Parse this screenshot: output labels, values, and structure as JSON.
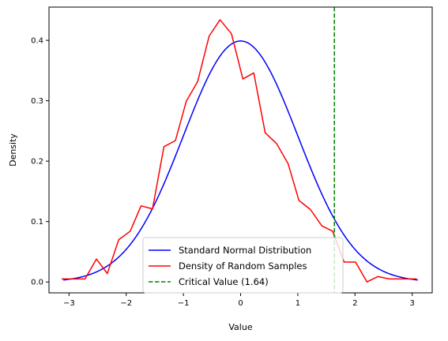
{
  "chart_data": {
    "type": "line",
    "xlabel": "Value",
    "ylabel": "Density",
    "xlim": [
      -3.35,
      3.35
    ],
    "ylim": [
      -0.018,
      0.455
    ],
    "xticks": [
      -3,
      -2,
      -1,
      0,
      1,
      2,
      3
    ],
    "xtick_labels": [
      "−3",
      "−2",
      "−1",
      "0",
      "1",
      "2",
      "3"
    ],
    "yticks": [
      0.0,
      0.1,
      0.2,
      0.3,
      0.4
    ],
    "ytick_labels": [
      "0.0",
      "0.1",
      "0.2",
      "0.3",
      "0.4"
    ],
    "grid": false,
    "legend_position": "lower-center",
    "series": [
      {
        "name": "Standard Normal Distribution",
        "color": "#0000ff",
        "style": "solid",
        "function": "standard-normal-pdf",
        "x_range": [
          -3.1,
          3.1
        ]
      },
      {
        "name": "Density of Random Samples",
        "color": "#ff0000",
        "style": "solid",
        "x": [
          -3.13,
          -2.92,
          -2.72,
          -2.52,
          -2.33,
          -2.13,
          -1.93,
          -1.74,
          -1.54,
          -1.34,
          -1.14,
          -0.95,
          -0.75,
          -0.55,
          -0.36,
          -0.16,
          0.04,
          0.23,
          0.43,
          0.63,
          0.83,
          1.02,
          1.22,
          1.42,
          1.61,
          1.81,
          2.01,
          2.21,
          2.4,
          2.6,
          2.8,
          2.99,
          3.08
        ],
        "y": [
          0.005,
          0.005,
          0.005,
          0.038,
          0.014,
          0.07,
          0.084,
          0.126,
          0.121,
          0.224,
          0.234,
          0.299,
          0.332,
          0.407,
          0.434,
          0.411,
          0.336,
          0.346,
          0.247,
          0.229,
          0.196,
          0.135,
          0.12,
          0.093,
          0.084,
          0.033,
          0.033,
          0.0,
          0.009,
          0.005,
          0.005,
          0.005,
          0.005
        ]
      },
      {
        "name": "Critical Value (1.64)",
        "color": "#008000",
        "style": "dashed",
        "vline_x": 1.64
      }
    ]
  }
}
